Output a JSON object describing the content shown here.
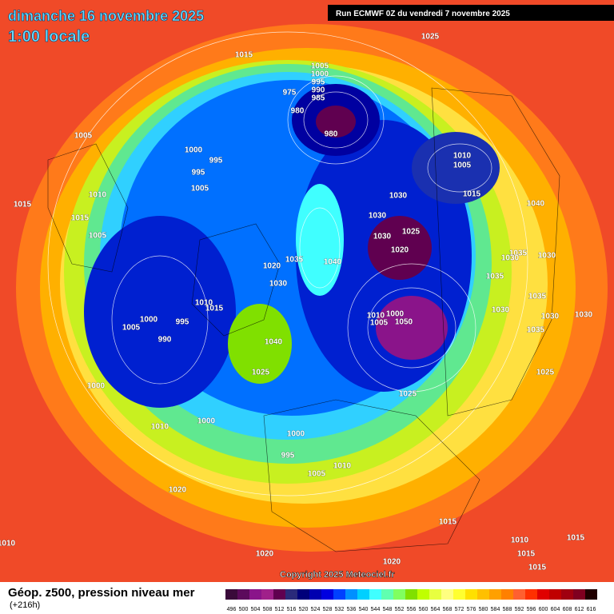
{
  "header": {
    "date": "dimanche 16 novembre 2025",
    "local_time": "1:00 locale",
    "run": "Run ECMWF 0Z du vendredi 7 novembre 2025"
  },
  "footer": {
    "copyright": "Copyright 2025 Meteociel.fr",
    "product": "Géop. z500, pression niveau mer",
    "lead": "(+216h)"
  },
  "colorbar": {
    "ticks": [
      496,
      500,
      504,
      508,
      512,
      516,
      520,
      524,
      528,
      532,
      536,
      540,
      544,
      548,
      552,
      556,
      560,
      564,
      568,
      572,
      576,
      580,
      584,
      588,
      592,
      596,
      600,
      604,
      608,
      612,
      616
    ],
    "colors": [
      "#3a0a3a",
      "#5c0a5c",
      "#8a148a",
      "#a0208a",
      "#600050",
      "#2a2a7a",
      "#00007a",
      "#0000b0",
      "#0000e0",
      "#0040ff",
      "#0090ff",
      "#00d0ff",
      "#40ffff",
      "#60ffb0",
      "#80ff60",
      "#80e000",
      "#c0ff00",
      "#e8ff40",
      "#ffff80",
      "#ffff30",
      "#ffe000",
      "#ffc000",
      "#ffa000",
      "#ff8000",
      "#ff6030",
      "#ff3000",
      "#e00000",
      "#c00000",
      "#a00010",
      "#800020",
      "#200000"
    ]
  },
  "isobar_labels": [
    1025,
    1015,
    1005,
    1000,
    995,
    990,
    985,
    975,
    980,
    980,
    1005,
    1000,
    995,
    995,
    1005,
    1010,
    1005,
    1015,
    1010,
    1015,
    1015,
    1005,
    1030,
    1040,
    1030,
    1025,
    1030,
    1020,
    1035,
    1030,
    1030,
    1035,
    1040,
    1020,
    1030,
    1035,
    1035,
    1030,
    1030,
    1030,
    1035,
    1010,
    1015,
    1000,
    995,
    1005,
    990,
    1000,
    1010,
    1005,
    1050,
    1025,
    1025,
    1040,
    1025,
    1000,
    1000,
    1010,
    1000,
    995,
    1010,
    1005,
    1020,
    1015,
    1015,
    1010,
    1015,
    1015,
    1010,
    1020,
    1020
  ]
}
